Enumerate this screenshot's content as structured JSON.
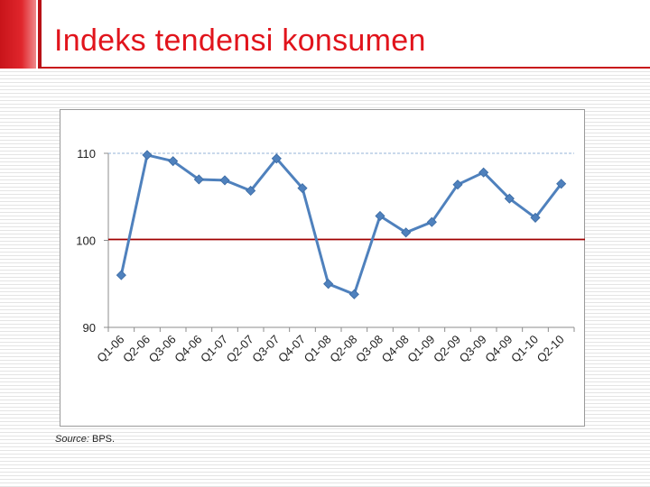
{
  "slide": {
    "title": "Indeks tendensi konsumen",
    "source_label": "Source:",
    "source_value": "BPS."
  },
  "colors": {
    "accent_red": "#e1141c",
    "series_blue": "#4f81bd",
    "baseline_red": "#a00000",
    "reference_dashed": "#95b3d7"
  },
  "chart_data": {
    "type": "line",
    "title": "",
    "xlabel": "",
    "ylabel": "",
    "ylim": [
      90,
      110
    ],
    "yticks": [
      90,
      100,
      110
    ],
    "categories": [
      "Q1-06",
      "Q2-06",
      "Q3-06",
      "Q4-06",
      "Q1-07",
      "Q2-07",
      "Q3-07",
      "Q4-07",
      "Q1-08",
      "Q2-08",
      "Q3-08",
      "Q4-08",
      "Q1-09",
      "Q2-09",
      "Q3-09",
      "Q4-09",
      "Q1-10",
      "Q2-10"
    ],
    "series": [
      {
        "values": [
          96.0,
          109.8,
          109.1,
          107.0,
          106.9,
          105.7,
          109.4,
          106.0,
          95.0,
          93.8,
          102.8,
          100.9,
          102.1,
          106.4,
          107.8,
          104.8,
          102.6,
          106.5
        ]
      }
    ],
    "reference_lines": [
      {
        "value": 110,
        "style": "dashed"
      },
      {
        "value": 100,
        "style": "solid"
      }
    ],
    "grid": false,
    "legend": "none"
  }
}
